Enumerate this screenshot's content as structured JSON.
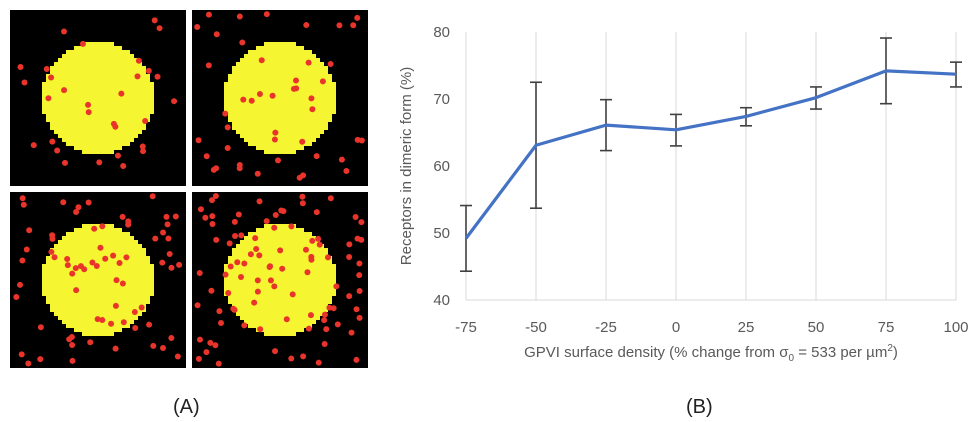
{
  "panel_labels": {
    "a": "(A)",
    "b": "(B)"
  },
  "colors": {
    "circle": "#f5f532",
    "dots": "#e8342a",
    "background": "#000000",
    "line": "#4472c4",
    "error": "#404040"
  },
  "tiles": [
    {
      "name": "tile-top-left"
    },
    {
      "name": "tile-top-right"
    },
    {
      "name": "tile-bottom-left"
    },
    {
      "name": "tile-bottom-right"
    }
  ],
  "chart_data": {
    "type": "line",
    "title": "",
    "xlabel_parts": [
      "GPVI surface density (% change from σ",
      "0",
      " = 533 per µm",
      "2",
      ")"
    ],
    "ylabel": "Receptors in dimeric form (%)",
    "x": [
      -75,
      -50,
      -25,
      0,
      25,
      50,
      75,
      100
    ],
    "x_tick_labels": [
      "-75",
      "-50",
      "-25",
      "0",
      "25",
      "50",
      "75",
      "100"
    ],
    "y_ticks": [
      40,
      50,
      60,
      70,
      80
    ],
    "y_tick_labels": [
      "40",
      "50",
      "60",
      "70",
      "80"
    ],
    "ylim": [
      40,
      80
    ],
    "xlim": [
      -75,
      100
    ],
    "series": [
      {
        "values": [
          49.2,
          63.1,
          66.1,
          65.4,
          67.4,
          70.2,
          74.2,
          73.7
        ],
        "error_low": [
          44.3,
          53.7,
          62.3,
          63.0,
          66.0,
          68.5,
          69.3,
          71.8
        ],
        "error_high": [
          54.1,
          72.5,
          69.9,
          67.7,
          68.7,
          71.8,
          79.1,
          75.5
        ]
      }
    ],
    "grid": "vertical only"
  }
}
